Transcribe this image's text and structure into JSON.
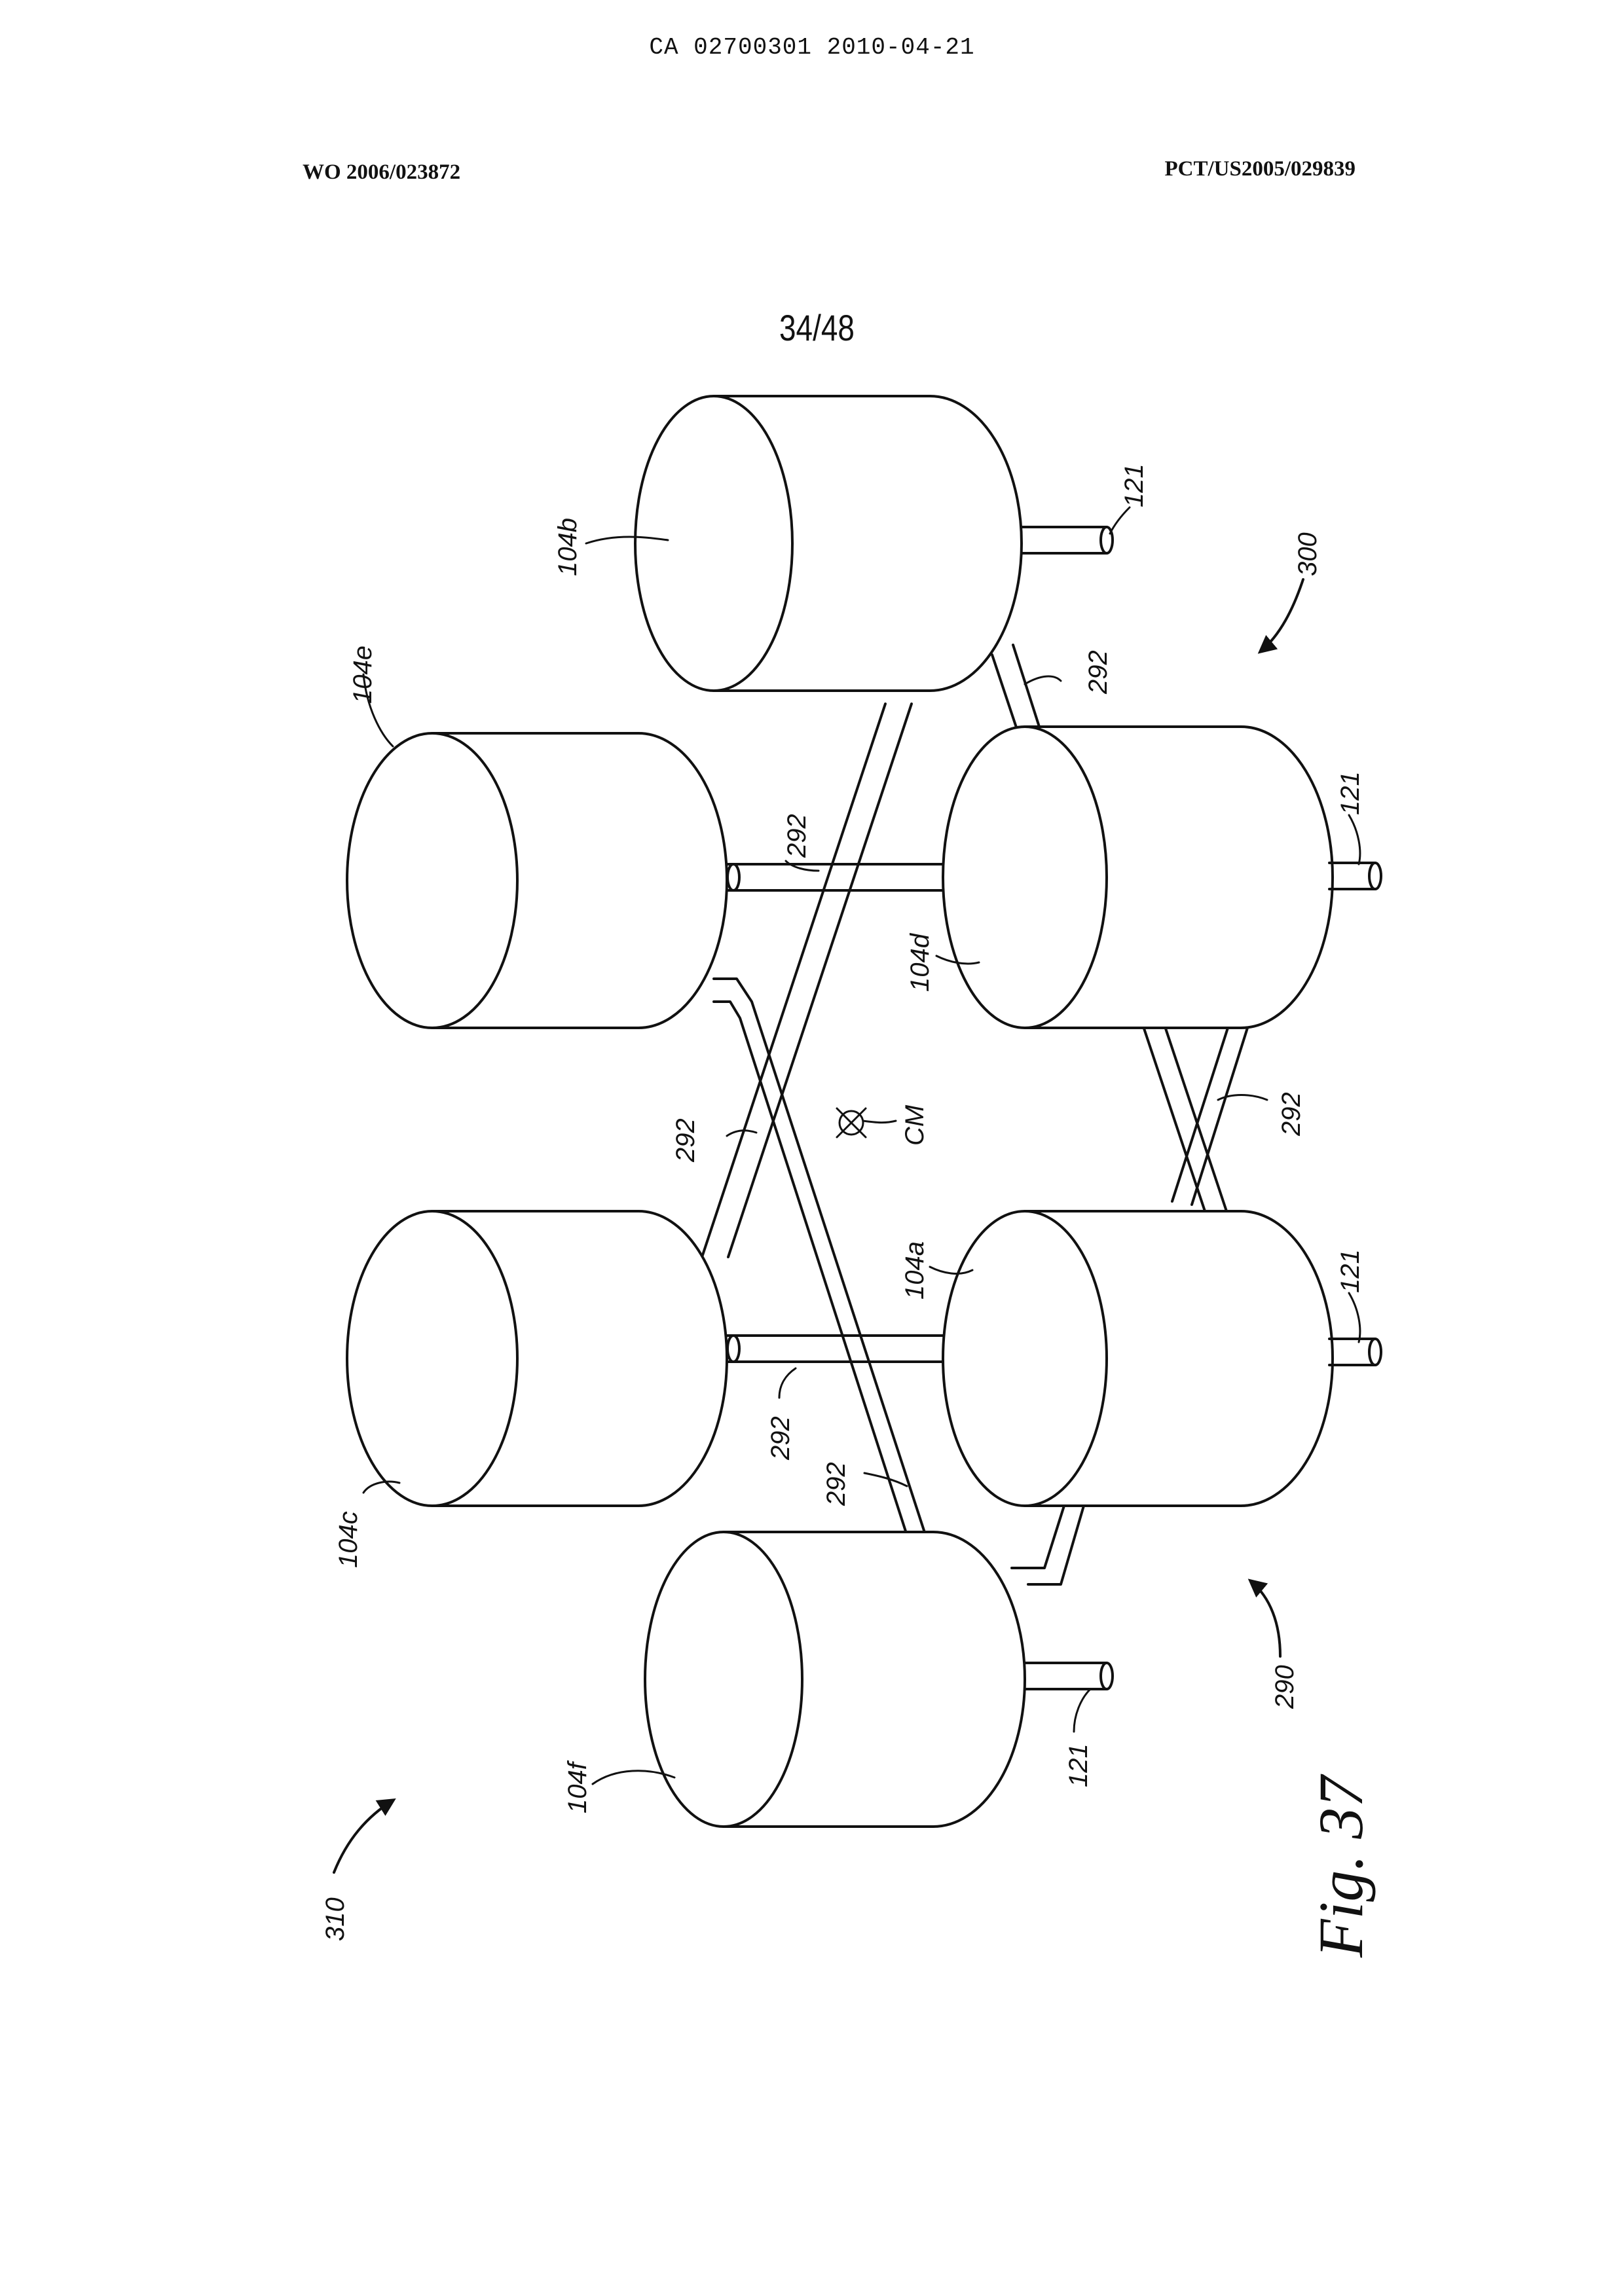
{
  "header": {
    "doc_id": "CA 02700301 2010-04-21",
    "pub_number": "WO 2006/023872",
    "app_number": "PCT/US2005/029839",
    "sheet": "34/48"
  },
  "figure": {
    "caption": "Fig. 37",
    "labels": {
      "tank_104a": "104a",
      "tank_104b": "104b",
      "tank_104c": "104c",
      "tank_104d": "104d",
      "tank_104e": "104e",
      "tank_104f": "104f",
      "pipe_121": "121",
      "strut_292": "292",
      "center_mass": "CM",
      "assembly_290": "290",
      "assembly_300": "300",
      "assembly_310": "310"
    }
  },
  "colors": {
    "ink": "#111111",
    "paper": "#ffffff"
  }
}
